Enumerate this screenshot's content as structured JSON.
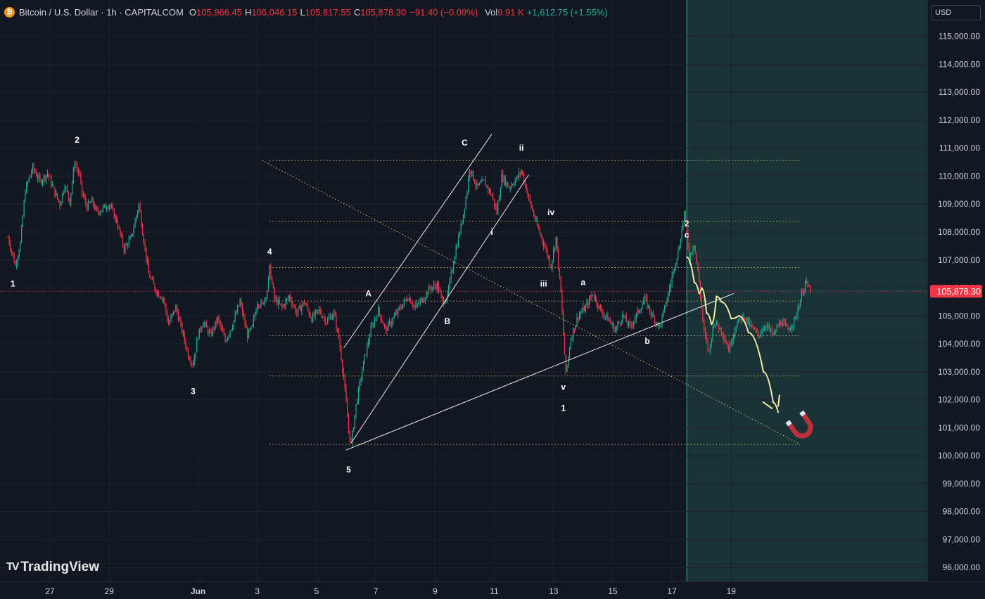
{
  "legend": {
    "symbol": "Bitcoin / U.S. Dollar · 1h · CAPITALCOM",
    "o_label": "O",
    "o_value": "105,966.45",
    "h_label": "H",
    "h_value": "106,046.15",
    "l_label": "L",
    "l_value": "105,817.55",
    "c_label": "C",
    "c_value": "105,878.30",
    "change": "−91.40 (−0.09%)",
    "vol_label": "Vol",
    "vol_value": "9.91 K",
    "vol_change": "+1,612.75 (+1.55%)"
  },
  "currency": "USD",
  "last_price_label": "105,878.30",
  "watermark": "TradingView",
  "colors": {
    "background": "#131722",
    "up": "#22ab94",
    "down": "#f23645",
    "projection_zone": "#1a3336",
    "projection_path": "#f3eaa6",
    "level_lines": "#c9c37a"
  },
  "chart_data": {
    "type": "candlestick",
    "title": "Bitcoin / U.S. Dollar · 1h · CAPITALCOM",
    "y_axis": {
      "ticks": [
        "115,000.00",
        "114,000.00",
        "113,000.00",
        "112,000.00",
        "111,000.00",
        "110,000.00",
        "109,000.00",
        "108,000.00",
        "107,000.00",
        "106,000.00",
        "105,000.00",
        "104,000.00",
        "103,000.00",
        "102,000.00",
        "101,000.00",
        "100,000.00",
        "99,000.00",
        "98,000.00",
        "97,000.00",
        "96,000.00"
      ],
      "range": [
        95500,
        116300
      ]
    },
    "x_axis": {
      "ticks": [
        "27",
        "29",
        "Jun",
        "3",
        "5",
        "7",
        "9",
        "11",
        "13",
        "15",
        "17",
        "19"
      ]
    },
    "last_price": 105878.3,
    "price_path": [
      [
        "May 25 14:00",
        107800
      ],
      [
        "May 25 20:00",
        106800
      ],
      [
        "May 26 00:00",
        107600
      ],
      [
        "May 26 04:00",
        109500
      ],
      [
        "May 26 10:00",
        110300
      ],
      [
        "May 26 16:00",
        109800
      ],
      [
        "May 26 22:00",
        110100
      ],
      [
        "May 27 04:00",
        109400
      ],
      [
        "May 27 08:00",
        109000
      ],
      [
        "May 27 12:00",
        109700
      ],
      [
        "May 27 16:00",
        109100
      ],
      [
        "May 27 20:00",
        110500
      ],
      [
        "May 28 00:00",
        110000
      ],
      [
        "May 28 02:00",
        109400
      ],
      [
        "May 28 06:00",
        108900
      ],
      [
        "May 28 10:00",
        109100
      ],
      [
        "May 28 14:00",
        108700
      ],
      [
        "May 29 00:00",
        109000
      ],
      [
        "May 29 06:00",
        108400
      ],
      [
        "May 29 12:00",
        107400
      ],
      [
        "May 29 18:00",
        107800
      ],
      [
        "May 30 00:00",
        109000
      ],
      [
        "May 30 04:00",
        107700
      ],
      [
        "May 30 08:00",
        106500
      ],
      [
        "May 30 14:00",
        105900
      ],
      [
        "May 30 20:00",
        105600
      ],
      [
        "May 31 00:00",
        104700
      ],
      [
        "May 31 06:00",
        105300
      ],
      [
        "May 31 12:00",
        104300
      ],
      [
        "May 31 16:00",
        103600
      ],
      [
        "May 31 20:00",
        103300
      ],
      [
        "Jun 01 00:00",
        104300
      ],
      [
        "Jun 01 04:00",
        104800
      ],
      [
        "Jun 01 10:00",
        104300
      ],
      [
        "Jun 01 16:00",
        104900
      ],
      [
        "Jun 01 22:00",
        104100
      ],
      [
        "Jun 02 04:00",
        104700
      ],
      [
        "Jun 02 10:00",
        105500
      ],
      [
        "Jun 02 16:00",
        104300
      ],
      [
        "Jun 02 20:00",
        104600
      ],
      [
        "Jun 03 00:00",
        105500
      ],
      [
        "Jun 03 04:00",
        105400
      ],
      [
        "Jun 03 08:00",
        105900
      ],
      [
        "Jun 03 10:00",
        106700
      ],
      [
        "Jun 03 14:00",
        105600
      ],
      [
        "Jun 03 20:00",
        105300
      ],
      [
        "Jun 04 02:00",
        105700
      ],
      [
        "Jun 04 08:00",
        105100
      ],
      [
        "Jun 04 14:00",
        105500
      ],
      [
        "Jun 04 20:00",
        104900
      ],
      [
        "Jun 05 02:00",
        105200
      ],
      [
        "Jun 05 08:00",
        104800
      ],
      [
        "Jun 05 14:00",
        105100
      ],
      [
        "Jun 05 18:00",
        104200
      ],
      [
        "Jun 05 22:00",
        102800
      ],
      [
        "Jun 06 02:00",
        100900
      ],
      [
        "Jun 06 04:00",
        100400
      ],
      [
        "Jun 06 08:00",
        101800
      ],
      [
        "Jun 06 14:00",
        103300
      ],
      [
        "Jun 06 20:00",
        104500
      ],
      [
        "Jun 07 02:00",
        105200
      ],
      [
        "Jun 07 08:00",
        104500
      ],
      [
        "Jun 07 14:00",
        104900
      ],
      [
        "Jun 07 20:00",
        105300
      ],
      [
        "Jun 08 02:00",
        105700
      ],
      [
        "Jun 08 08:00",
        105300
      ],
      [
        "Jun 08 14:00",
        105600
      ],
      [
        "Jun 08 20:00",
        106000
      ],
      [
        "Jun 09 02:00",
        106100
      ],
      [
        "Jun 09 06:00",
        105500
      ],
      [
        "Jun 09 10:00",
        105700
      ],
      [
        "Jun 09 16:00",
        107200
      ],
      [
        "Jun 09 22:00",
        108400
      ],
      [
        "Jun 10 02:00",
        109500
      ],
      [
        "Jun 10 04:00",
        110300
      ],
      [
        "Jun 10 10:00",
        109600
      ],
      [
        "Jun 10 16:00",
        109800
      ],
      [
        "Jun 10 22:00",
        109300
      ],
      [
        "Jun 11 02:00",
        108700
      ],
      [
        "Jun 11 06:00",
        110000
      ],
      [
        "Jun 11 12:00",
        109600
      ],
      [
        "Jun 11 18:00",
        109900
      ],
      [
        "Jun 11 22:00",
        110200
      ],
      [
        "Jun 12 04:00",
        109200
      ],
      [
        "Jun 12 10:00",
        108300
      ],
      [
        "Jun 12 16:00",
        107600
      ],
      [
        "Jun 12 22:00",
        106800
      ],
      [
        "Jun 13 02:00",
        107800
      ],
      [
        "Jun 13 06:00",
        105800
      ],
      [
        "Jun 13 10:00",
        102900
      ],
      [
        "Jun 13 14:00",
        104200
      ],
      [
        "Jun 13 20:00",
        105000
      ],
      [
        "Jun 14 02:00",
        105300
      ],
      [
        "Jun 14 08:00",
        105800
      ],
      [
        "Jun 14 14:00",
        105200
      ],
      [
        "Jun 14 20:00",
        104900
      ],
      [
        "Jun 15 02:00",
        104500
      ],
      [
        "Jun 15 08:00",
        105000
      ],
      [
        "Jun 15 14:00",
        104600
      ],
      [
        "Jun 15 20:00",
        105100
      ],
      [
        "Jun 16 02:00",
        105600
      ],
      [
        "Jun 16 08:00",
        105000
      ],
      [
        "Jun 16 14:00",
        104600
      ],
      [
        "Jun 16 20:00",
        105600
      ],
      [
        "Jun 17 02:00",
        106800
      ],
      [
        "Jun 17 06:00",
        107500
      ],
      [
        "Jun 17 10:00",
        108700
      ],
      [
        "Jun 17 14:00",
        107100
      ],
      [
        "Jun 17 18:00",
        107600
      ],
      [
        "Jun 17 22:00",
        106200
      ],
      [
        "Jun 18 02:00",
        104400
      ],
      [
        "Jun 18 06:00",
        103700
      ],
      [
        "Jun 18 10:00",
        104800
      ],
      [
        "Jun 18 16:00",
        104500
      ],
      [
        "Jun 18 22:00",
        103800
      ],
      [
        "Jun 19 04:00",
        104700
      ],
      [
        "Jun 19 10:00",
        105000
      ],
      [
        "Jun 19 16:00",
        104600
      ],
      [
        "Jun 19 22:00",
        104300
      ],
      [
        "Jun 20 04:00",
        104700
      ],
      [
        "Jun 20 10:00",
        104300
      ],
      [
        "Jun 20 16:00",
        104800
      ],
      [
        "Jun 20 22:00",
        104500
      ],
      [
        "Jun 21 04:00",
        104900
      ],
      [
        "Jun 21 08:00",
        105600
      ],
      [
        "Jun 21 12:00",
        106200
      ],
      [
        "Jun 21 16:00",
        105878
      ]
    ],
    "horizontal_levels": [
      110560,
      108380,
      106730,
      105530,
      104290,
      102850,
      100400
    ],
    "trend_lines": [
      {
        "name": "channel-upper",
        "from": [
          "Jun 05 22:00",
          103850
        ],
        "to": [
          "Jun 10 22:00",
          111500
        ],
        "style": "solid"
      },
      {
        "name": "channel-lower",
        "from": [
          "Jun 06 04:00",
          100450
        ],
        "to": [
          "Jun 12 04:00",
          110050
        ],
        "style": "solid"
      },
      {
        "name": "rising-support",
        "from": [
          "Jun 06 00:00",
          100200
        ],
        "to": [
          "Jun 19 02:00",
          105800
        ],
        "style": "solid"
      },
      {
        "name": "descending-dotted",
        "from": [
          "Jun 03 04:00",
          110560
        ],
        "to": [
          "Jun 21 08:00",
          100400
        ],
        "style": "dotted"
      }
    ],
    "projection": {
      "start": "Jun 17 12:00",
      "path": [
        [
          "Jun 17 12:00",
          107100
        ],
        [
          "Jun 17 18:00",
          106200
        ],
        [
          "Jun 17 22:00",
          105800
        ],
        [
          "Jun 18 00:00",
          106000
        ],
        [
          "Jun 18 04:00",
          105100
        ],
        [
          "Jun 18 08:00",
          104700
        ],
        [
          "Jun 18 12:00",
          105700
        ],
        [
          "Jun 18 16:00",
          105500
        ],
        [
          "Jun 19 00:00",
          104900
        ],
        [
          "Jun 19 06:00",
          105000
        ],
        [
          "Jun 19 14:00",
          104400
        ],
        [
          "Jun 20 02:00",
          103000
        ],
        [
          "Jun 20 10:00",
          101900
        ],
        [
          "Jun 20 14:00",
          101550
        ]
      ]
    },
    "wave_labels": [
      {
        "text": "1",
        "x": "May 25 18:00",
        "y": 106050
      },
      {
        "text": "2",
        "x": "May 27 22:00",
        "y": 111200
      },
      {
        "text": "3",
        "x": "May 31 20:00",
        "y": 102200
      },
      {
        "text": "4",
        "x": "Jun 03 10:00",
        "y": 107200
      },
      {
        "text": "5",
        "x": "Jun 06 02:00",
        "y": 99400
      },
      {
        "text": "A",
        "x": "Jun 06 18:00",
        "y": 105700
      },
      {
        "text": "B",
        "x": "Jun 09 10:00",
        "y": 104700
      },
      {
        "text": "C",
        "x": "Jun 10 00:00",
        "y": 111100
      },
      {
        "text": "i",
        "x": "Jun 10 22:00",
        "y": 107900
      },
      {
        "text": "ii",
        "x": "Jun 11 22:00",
        "y": 110900
      },
      {
        "text": "iii",
        "x": "Jun 12 16:00",
        "y": 106050
      },
      {
        "text": "iv",
        "x": "Jun 12 22:00",
        "y": 108600
      },
      {
        "text": "v",
        "x": "Jun 13 08:00",
        "y": 102350
      },
      {
        "text": "1",
        "x": "Jun 13 08:00",
        "y": 101600
      },
      {
        "text": "a",
        "x": "Jun 14 00:00",
        "y": 106100
      },
      {
        "text": "b",
        "x": "Jun 16 04:00",
        "y": 104000
      },
      {
        "text": "2",
        "x": "Jun 17 12:00",
        "y": 108200
      },
      {
        "text": "c",
        "x": "Jun 17 12:00",
        "y": 107800
      }
    ]
  }
}
